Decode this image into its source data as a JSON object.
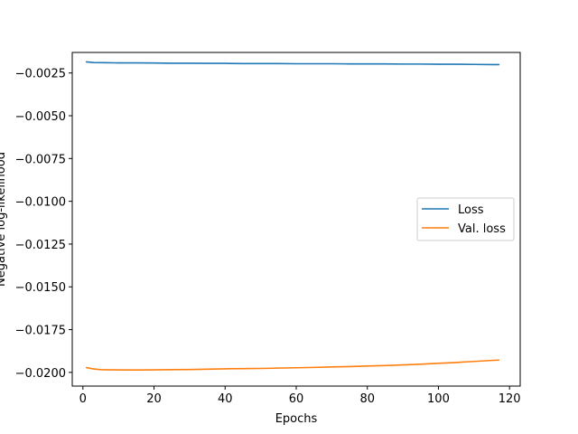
{
  "chart_data": {
    "type": "line",
    "title": "",
    "xlabel": "Epochs",
    "ylabel": "Negative log-likelihood",
    "xlim": [
      -3.0,
      123.0
    ],
    "ylim": [
      -0.0208,
      -0.0013
    ],
    "xticks": [
      0,
      20,
      40,
      60,
      80,
      100,
      120
    ],
    "xtick_labels": [
      "0",
      "20",
      "40",
      "60",
      "80",
      "100",
      "120"
    ],
    "yticks": [
      -0.0025,
      -0.005,
      -0.0075,
      -0.01,
      -0.0125,
      -0.015,
      -0.0175,
      -0.02
    ],
    "ytick_labels": [
      "−0.0025",
      "−0.0050",
      "−0.0075",
      "−0.0100",
      "−0.0125",
      "−0.0150",
      "−0.0175",
      "−0.0200"
    ],
    "grid": false,
    "legend_position": "center-right",
    "series": [
      {
        "name": "Loss",
        "color": "#1f77b4",
        "x": [
          1,
          3,
          6,
          10,
          15,
          20,
          25,
          30,
          35,
          40,
          45,
          50,
          55,
          60,
          65,
          70,
          75,
          80,
          85,
          90,
          95,
          100,
          105,
          110,
          115,
          117
        ],
        "y": [
          -0.00185,
          -0.00189,
          -0.0019,
          -0.00191,
          -0.00191,
          -0.00192,
          -0.00193,
          -0.00193,
          -0.00194,
          -0.00194,
          -0.00195,
          -0.00195,
          -0.00195,
          -0.00196,
          -0.00196,
          -0.00196,
          -0.00197,
          -0.00197,
          -0.00197,
          -0.00198,
          -0.00198,
          -0.00199,
          -0.00199,
          -0.002,
          -0.00201,
          -0.00201
        ]
      },
      {
        "name": "Val. loss",
        "color": "#ff7f0e",
        "x": [
          1,
          3,
          5,
          8,
          12,
          16,
          20,
          25,
          30,
          35,
          40,
          45,
          50,
          55,
          60,
          65,
          70,
          75,
          80,
          85,
          90,
          95,
          100,
          105,
          110,
          115,
          117
        ],
        "y": [
          -0.01972,
          -0.0198,
          -0.01984,
          -0.01985,
          -0.01986,
          -0.01986,
          -0.01985,
          -0.01984,
          -0.01983,
          -0.01981,
          -0.01979,
          -0.01978,
          -0.01977,
          -0.01975,
          -0.01973,
          -0.01971,
          -0.01968,
          -0.01966,
          -0.01963,
          -0.0196,
          -0.01956,
          -0.01952,
          -0.01947,
          -0.01942,
          -0.01936,
          -0.0193,
          -0.01928
        ]
      }
    ]
  }
}
